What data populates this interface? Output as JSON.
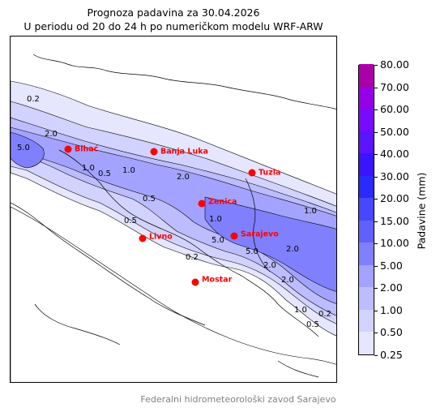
{
  "title": {
    "line1": "Prognoza padavina za 30.04.2026",
    "line2": "U periodu od 20 do 24 h po numeričkom modelu WRF-ARW"
  },
  "colorbar": {
    "label": "Padavine (mm)",
    "levels": [
      "0.25",
      "0.50",
      "1.00",
      "2.00",
      "5.00",
      "10.00",
      "15.00",
      "20.00",
      "30.00",
      "40.00",
      "50.00",
      "60.00",
      "70.00",
      "80.00"
    ],
    "colors": [
      "#e6e6ff",
      "#d2d2ff",
      "#bcbcff",
      "#a3a3ff",
      "#8080ff",
      "#6060ff",
      "#4747ff",
      "#2a2aff",
      "#3a14ff",
      "#5a14ff",
      "#7a0aff",
      "#9600e6",
      "#aa00aa"
    ]
  },
  "cities": [
    {
      "name": "Bihać",
      "color": "#ff0000"
    },
    {
      "name": "Banja Luka",
      "color": "#ff0000"
    },
    {
      "name": "Tuzla",
      "color": "#ff0000"
    },
    {
      "name": "Zenica",
      "color": "#ff0000"
    },
    {
      "name": "Livno",
      "color": "#ff0000"
    },
    {
      "name": "Sarajevo",
      "color": "#ff0000"
    },
    {
      "name": "Mostar",
      "color": "#ff0000"
    }
  ],
  "contour_labels": [
    "0.2",
    "2.0",
    "5.0",
    "1.0",
    "0.5",
    "2.0",
    "1.0",
    "0.5",
    "0.5",
    "1.0",
    "0.2",
    "2.0",
    "5.0",
    "2.0",
    "1.0",
    "0.5",
    "0.2",
    "1.0",
    "2.0",
    "5.0"
  ],
  "footer": "Federalni hidrometeorološki zavod Sarajevo"
}
